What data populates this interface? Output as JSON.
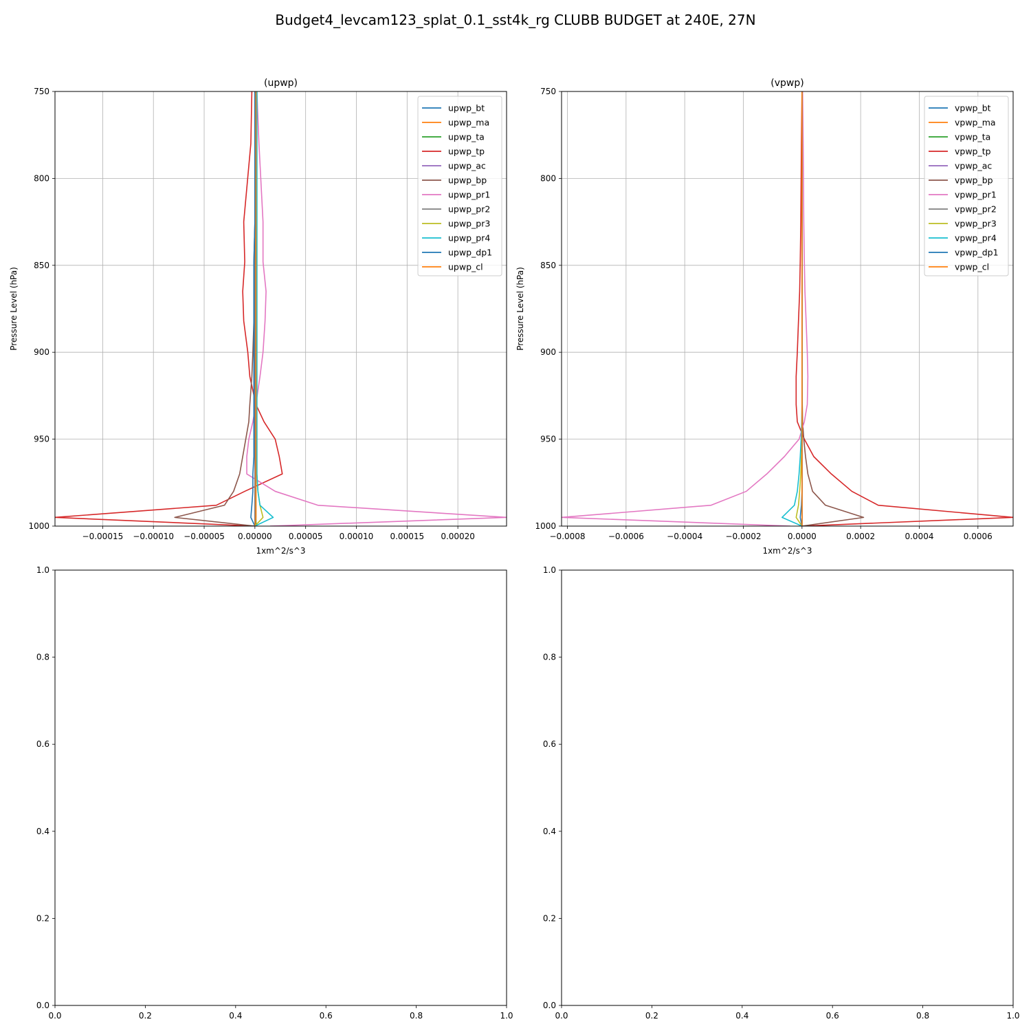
{
  "figure": {
    "suptitle": "Budget4_levcam123_splat_0.1_sst4k_rg CLUBB BUDGET at 240E, 27N"
  },
  "colors": {
    "tab10": [
      "#1f77b4",
      "#ff7f0e",
      "#2ca02c",
      "#d62728",
      "#9467bd",
      "#8c564b",
      "#e377c2",
      "#7f7f7f",
      "#bcbd22",
      "#17becf"
    ],
    "grid": "#b0b0b0",
    "axes": "#000000"
  },
  "chart_data": [
    {
      "type": "line",
      "title": "(upwp)",
      "xlabel": "1xm^2/s^3",
      "ylabel": "Pressure Level (hPa)",
      "xlim": [
        -0.000197,
        0.000248
      ],
      "ylim": [
        1000,
        750
      ],
      "y_inverted": true,
      "grid": true,
      "legend_position": "top-right",
      "x_ticks": [
        -0.00015,
        -0.0001,
        -5e-05,
        0,
        5e-05,
        0.0001,
        0.00015,
        0.0002
      ],
      "x_tick_labels": [
        "−0.00015",
        "−0.00010",
        "−0.00005",
        "0.00000",
        "0.00005",
        "0.00010",
        "0.00015",
        "0.00020"
      ],
      "y_ticks": [
        750,
        800,
        850,
        900,
        950,
        1000
      ],
      "y_tick_labels": [
        "750",
        "800",
        "850",
        "900",
        "950",
        "1000"
      ],
      "levels": [
        750,
        780,
        825,
        848,
        865,
        882,
        900,
        914,
        930,
        940,
        950,
        960,
        970,
        980,
        988,
        995,
        1000
      ],
      "series": [
        {
          "name": "upwp_bt",
          "color_index": 0,
          "values": [
            0,
            0,
            0,
            0,
            0,
            0,
            0,
            0,
            0,
            0,
            0,
            0,
            0,
            0,
            0,
            0,
            0
          ]
        },
        {
          "name": "upwp_ma",
          "color_index": 1,
          "values": [
            1e-06,
            1e-06,
            1e-06,
            1e-06,
            1e-06,
            1e-06,
            1e-06,
            1e-06,
            1e-06,
            1e-06,
            1e-06,
            1e-06,
            1e-06,
            1e-06,
            1e-06,
            1e-06,
            1e-06
          ]
        },
        {
          "name": "upwp_ta",
          "color_index": 2,
          "values": [
            1e-06,
            1e-06,
            1e-06,
            1e-06,
            1e-06,
            1e-06,
            1e-06,
            1e-06,
            1e-06,
            1e-06,
            1e-06,
            1e-06,
            1e-06,
            1e-06,
            1e-06,
            1e-06,
            1e-06
          ]
        },
        {
          "name": "upwp_tp",
          "color_index": 3,
          "values": [
            -3e-06,
            -4e-06,
            -1.1e-05,
            -1e-05,
            -1.2e-05,
            -1.1e-05,
            -7e-06,
            -5e-06,
            1e-06,
            9e-06,
            2e-05,
            2.4e-05,
            2.7e-05,
            -1e-05,
            -3.8e-05,
            -0.000197,
            0
          ]
        },
        {
          "name": "upwp_ac",
          "color_index": 4,
          "values": [
            0,
            0,
            0,
            0,
            0,
            0,
            0,
            0,
            0,
            0,
            0,
            0,
            0,
            0,
            0,
            0,
            0
          ]
        },
        {
          "name": "upwp_bp",
          "color_index": 5,
          "values": [
            0,
            0,
            0,
            -1e-06,
            -1e-06,
            -1e-06,
            -2e-06,
            -3e-06,
            -5e-06,
            -6e-06,
            -9e-06,
            -1.2e-05,
            -1.5e-05,
            -2.1e-05,
            -3e-05,
            -7.9e-05,
            0
          ]
        },
        {
          "name": "upwp_pr1",
          "color_index": 6,
          "values": [
            2e-06,
            4e-06,
            8e-06,
            8e-06,
            1.1e-05,
            1e-05,
            8e-06,
            5e-06,
            1e-06,
            -2e-06,
            -6e-06,
            -8e-06,
            -8e-06,
            2e-05,
            6.2e-05,
            0.000248,
            1.5e-05
          ]
        },
        {
          "name": "upwp_pr2",
          "color_index": 7,
          "values": [
            0,
            0,
            0,
            0,
            0,
            0,
            0,
            0,
            0,
            0,
            0,
            0,
            0,
            0,
            0,
            0,
            0
          ]
        },
        {
          "name": "upwp_pr3",
          "color_index": 8,
          "values": [
            2e-06,
            2e-06,
            2e-06,
            2e-06,
            2e-06,
            2e-06,
            2e-06,
            2e-06,
            2e-06,
            2e-06,
            2e-06,
            2e-06,
            2e-06,
            3e-06,
            5e-06,
            8e-06,
            0
          ]
        },
        {
          "name": "upwp_pr4",
          "color_index": 9,
          "values": [
            2e-06,
            2e-06,
            2e-06,
            2e-06,
            2e-06,
            2e-06,
            2e-06,
            2e-06,
            2e-06,
            2e-06,
            2e-06,
            2e-06,
            2e-06,
            3e-06,
            5e-06,
            1.8e-05,
            0
          ]
        },
        {
          "name": "upwp_dp1",
          "color_index": 0,
          "values": [
            0,
            0,
            0,
            -1e-06,
            -1e-06,
            -1e-06,
            -1e-06,
            -1e-06,
            -1e-06,
            -1e-06,
            -1e-06,
            -1e-06,
            -2e-06,
            -2e-06,
            -3e-06,
            -4e-06,
            0
          ]
        },
        {
          "name": "upwp_cl",
          "color_index": 1,
          "values": [
            1e-06,
            1e-06,
            1e-06,
            1e-06,
            1e-06,
            1e-06,
            1e-06,
            1e-06,
            1e-06,
            1e-06,
            1e-06,
            1e-06,
            1e-06,
            1e-06,
            1e-06,
            1e-06,
            0
          ]
        }
      ]
    },
    {
      "type": "line",
      "title": "(vpwp)",
      "xlabel": "1xm^2/s^3",
      "ylabel": "Pressure Level (hPa)",
      "xlim": [
        -0.00082,
        0.00072
      ],
      "ylim": [
        1000,
        750
      ],
      "y_inverted": true,
      "grid": true,
      "legend_position": "top-right",
      "x_ticks": [
        -0.0008,
        -0.0006,
        -0.0004,
        -0.0002,
        0,
        0.0002,
        0.0004,
        0.0006
      ],
      "x_tick_labels": [
        "−0.0008",
        "−0.0006",
        "−0.0004",
        "−0.0002",
        "0.0000",
        "0.0002",
        "0.0004",
        "0.0006"
      ],
      "y_ticks": [
        750,
        800,
        850,
        900,
        950,
        1000
      ],
      "y_tick_labels": [
        "750",
        "800",
        "850",
        "900",
        "950",
        "1000"
      ],
      "levels": [
        750,
        780,
        825,
        848,
        865,
        882,
        900,
        914,
        930,
        940,
        950,
        960,
        970,
        980,
        988,
        995,
        1000
      ],
      "series": [
        {
          "name": "vpwp_bt",
          "color_index": 0,
          "values": [
            0,
            0,
            0,
            0,
            0,
            0,
            0,
            0,
            0,
            0,
            0,
            0,
            0,
            0,
            0,
            0,
            0
          ]
        },
        {
          "name": "vpwp_ma",
          "color_index": 1,
          "values": [
            0,
            0,
            0,
            0,
            0,
            0,
            0,
            0,
            0,
            0,
            0,
            0,
            0,
            0,
            0,
            0,
            0
          ]
        },
        {
          "name": "vpwp_ta",
          "color_index": 2,
          "values": [
            0,
            0,
            0,
            0,
            0,
            0,
            0,
            0,
            0,
            0,
            0,
            0,
            0,
            0,
            0,
            0,
            0
          ]
        },
        {
          "name": "vpwp_tp",
          "color_index": 3,
          "values": [
            0,
            -2e-06,
            -4e-06,
            -6e-06,
            -8e-06,
            -1.2e-05,
            -1.6e-05,
            -2e-05,
            -2e-05,
            -1.6e-05,
            8e-06,
            4e-05,
            0.0001,
            0.00017,
            0.00026,
            0.00072,
            0
          ]
        },
        {
          "name": "vpwp_ac",
          "color_index": 4,
          "values": [
            0,
            0,
            0,
            0,
            0,
            0,
            0,
            0,
            0,
            0,
            0,
            0,
            0,
            0,
            0,
            0,
            0
          ]
        },
        {
          "name": "vpwp_bp",
          "color_index": 5,
          "values": [
            0,
            0,
            0,
            0,
            0,
            0,
            0,
            0,
            1e-06,
            2e-06,
            6e-06,
            1.2e-05,
            2e-05,
            3.6e-05,
            8e-05,
            0.00021,
            0
          ]
        },
        {
          "name": "vpwp_pr1",
          "color_index": 6,
          "values": [
            2e-06,
            4e-06,
            6e-06,
            8e-06,
            1e-05,
            1.4e-05,
            1.8e-05,
            2e-05,
            1.8e-05,
            8e-06,
            -1e-05,
            -6e-05,
            -0.00012,
            -0.00019,
            -0.00031,
            -0.00082,
            -4e-05
          ]
        },
        {
          "name": "vpwp_pr2",
          "color_index": 7,
          "values": [
            0,
            0,
            0,
            0,
            0,
            0,
            0,
            0,
            0,
            0,
            0,
            0,
            0,
            0,
            0,
            0,
            0
          ]
        },
        {
          "name": "vpwp_pr3",
          "color_index": 8,
          "values": [
            0,
            0,
            0,
            0,
            0,
            0,
            0,
            0,
            0,
            0,
            0,
            -2e-06,
            -4e-06,
            -8e-06,
            -1.2e-05,
            -2e-05,
            0
          ]
        },
        {
          "name": "vpwp_pr4",
          "color_index": 9,
          "values": [
            0,
            0,
            0,
            0,
            0,
            0,
            0,
            0,
            0,
            -1e-06,
            -3e-06,
            -6e-06,
            -1e-05,
            -1.6e-05,
            -2.6e-05,
            -6.8e-05,
            0
          ]
        },
        {
          "name": "vpwp_dp1",
          "color_index": 0,
          "values": [
            0,
            0,
            0,
            0,
            0,
            0,
            0,
            0,
            0,
            0,
            0,
            0,
            0,
            0,
            -2e-06,
            -6e-06,
            0
          ]
        },
        {
          "name": "vpwp_cl",
          "color_index": 1,
          "values": [
            0,
            0,
            0,
            0,
            0,
            0,
            0,
            0,
            0,
            0,
            0,
            0,
            0,
            0,
            0,
            0,
            0
          ]
        }
      ]
    },
    {
      "type": "line",
      "title": "",
      "xlim": [
        0,
        1
      ],
      "ylim": [
        0,
        1
      ],
      "grid": false,
      "x_ticks": [
        0,
        0.2,
        0.4,
        0.6,
        0.8,
        1.0
      ],
      "x_tick_labels": [
        "0.0",
        "0.2",
        "0.4",
        "0.6",
        "0.8",
        "1.0"
      ],
      "y_ticks": [
        0,
        0.2,
        0.4,
        0.6,
        0.8,
        1.0
      ],
      "y_tick_labels": [
        "0.0",
        "0.2",
        "0.4",
        "0.6",
        "0.8",
        "1.0"
      ],
      "series": []
    },
    {
      "type": "line",
      "title": "",
      "xlim": [
        0,
        1
      ],
      "ylim": [
        0,
        1
      ],
      "grid": false,
      "x_ticks": [
        0,
        0.2,
        0.4,
        0.6,
        0.8,
        1.0
      ],
      "x_tick_labels": [
        "0.0",
        "0.2",
        "0.4",
        "0.6",
        "0.8",
        "1.0"
      ],
      "y_ticks": [
        0,
        0.2,
        0.4,
        0.6,
        0.8,
        1.0
      ],
      "y_tick_labels": [
        "0.0",
        "0.2",
        "0.4",
        "0.6",
        "0.8",
        "1.0"
      ],
      "series": []
    }
  ]
}
